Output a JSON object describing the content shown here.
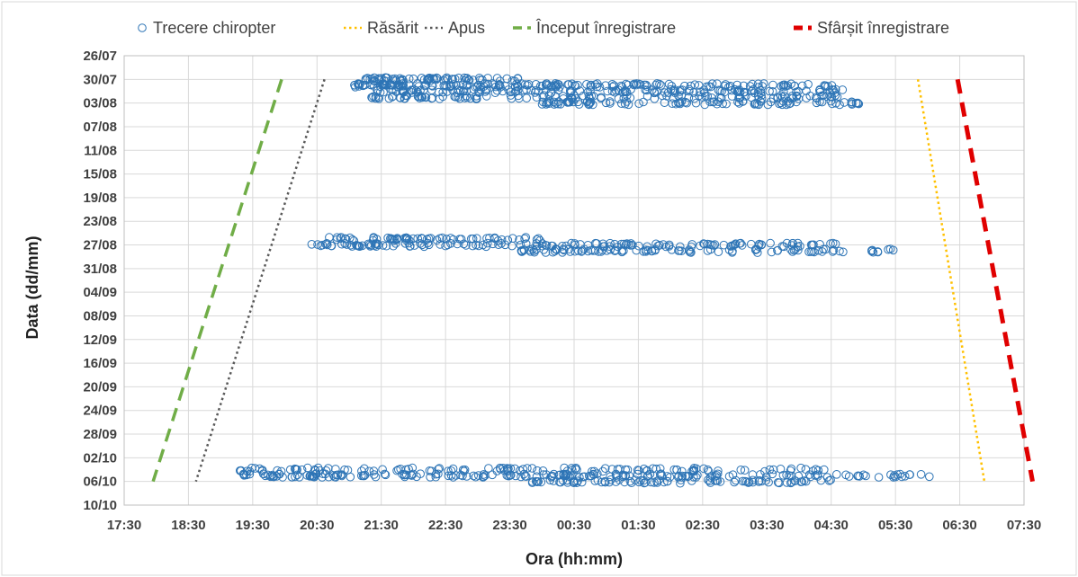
{
  "chart_data": {
    "type": "scatter",
    "xlabel": "Ora (hh:mm)",
    "ylabel": "Data (dd/mm)",
    "grid": true,
    "legend_position": "top",
    "x_ticks": [
      "17:30",
      "18:30",
      "19:30",
      "20:30",
      "21:30",
      "22:30",
      "23:30",
      "00:30",
      "01:30",
      "02:30",
      "03:30",
      "04:30",
      "05:30",
      "06:30",
      "07:30"
    ],
    "y_ticks": [
      "26/07",
      "30/07",
      "03/08",
      "07/08",
      "11/08",
      "15/08",
      "19/08",
      "23/08",
      "27/08",
      "31/08",
      "04/09",
      "08/09",
      "12/09",
      "16/09",
      "20/09",
      "24/09",
      "28/09",
      "02/10",
      "06/10",
      "10/10"
    ],
    "xlim": [
      "17:30",
      "07:30"
    ],
    "ylim": [
      "26/07",
      "10/10"
    ],
    "legend": [
      {
        "label": "Trecere chiropter",
        "style": "marker",
        "color": "#2e75b6"
      },
      {
        "label": "Răsărit",
        "style": "dotted",
        "color": "#ffc000"
      },
      {
        "label": "Apus",
        "style": "dotted",
        "color": "#595959"
      },
      {
        "label": "Început înregistrare",
        "style": "dashed",
        "color": "#70ad47"
      },
      {
        "label": "Sfârșit înregistrare",
        "style": "dashed",
        "color": "#e00000"
      }
    ],
    "series": [
      {
        "name": "Apus",
        "x": [
          "20:37",
          "18:37"
        ],
        "y": [
          "30/07",
          "06/10"
        ]
      },
      {
        "name": "Început înregistrare",
        "x": [
          "19:57",
          "17:57"
        ],
        "y": [
          "30/07",
          "06/10"
        ]
      },
      {
        "name": "Răsărit",
        "x": [
          "05:51",
          "06:53"
        ],
        "y": [
          "30/07",
          "06/10"
        ]
      },
      {
        "name": "Sfârșit înregistrare",
        "x": [
          "06:28",
          "07:38"
        ],
        "y": [
          "30/07",
          "06/10"
        ]
      },
      {
        "name": "Trecere chiropter",
        "groups": [
          {
            "date": "30/07",
            "x_start": "21:15",
            "x_end": "23:45",
            "count": 70
          },
          {
            "date": "31/07",
            "x_start": "21:05",
            "x_end": "04:45",
            "count": 170
          },
          {
            "date": "01/08",
            "x_start": "21:20",
            "x_end": "04:45",
            "count": 130
          },
          {
            "date": "02/08",
            "x_start": "21:20",
            "x_end": "04:40",
            "count": 120
          },
          {
            "date": "03/08",
            "x_start": "00:00",
            "x_end": "05:00",
            "count": 95
          },
          {
            "date": "26/08",
            "x_start": "20:40",
            "x_end": "00:00",
            "count": 65
          },
          {
            "date": "27/08",
            "x_start": "20:25",
            "x_end": "04:35",
            "count": 150
          },
          {
            "date": "28/08",
            "x_start": "23:40",
            "x_end": "05:30",
            "count": 100
          },
          {
            "date": "04/10",
            "x_start": "19:15",
            "x_end": "04:25",
            "count": 120
          },
          {
            "date": "05/10",
            "x_start": "19:15",
            "x_end": "06:10",
            "count": 190
          },
          {
            "date": "06/10",
            "x_start": "23:50",
            "x_end": "04:40",
            "count": 85
          }
        ]
      }
    ]
  }
}
